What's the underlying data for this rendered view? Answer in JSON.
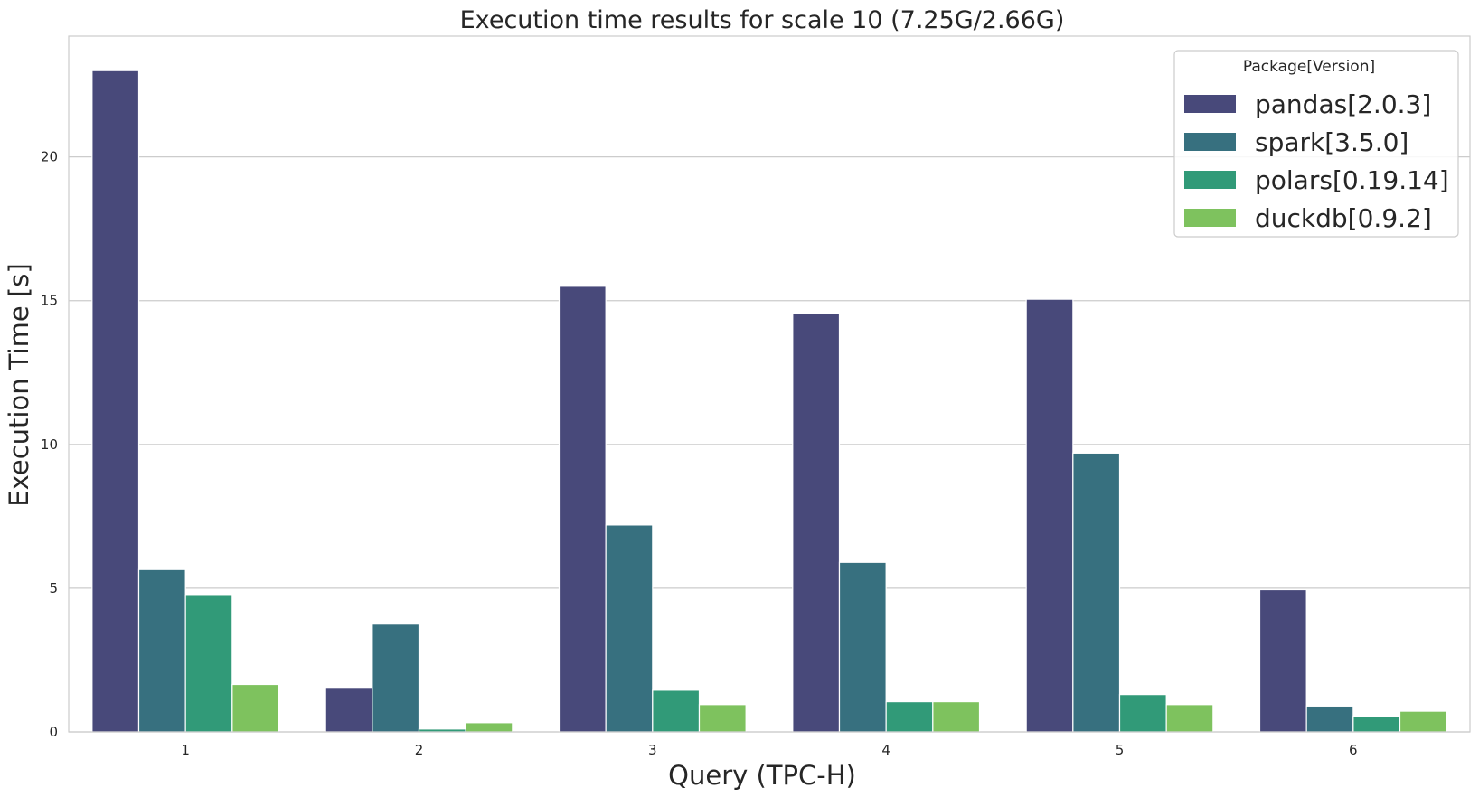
{
  "chart_data": {
    "type": "bar",
    "title": "Execution time results for scale 10 (7.25G/2.66G)",
    "xlabel": "Query (TPC-H)",
    "ylabel": "Execution Time [s]",
    "categories": [
      "1",
      "2",
      "3",
      "4",
      "5",
      "6"
    ],
    "ylim": [
      0,
      24.2
    ],
    "yticks": [
      0,
      5,
      10,
      15,
      20
    ],
    "grid": "horizontal",
    "legend_title": "Package[Version]",
    "legend_position": "top-right",
    "series": [
      {
        "name": "pandas[2.0.3]",
        "color": "#48497a",
        "values": [
          23.0,
          1.55,
          15.5,
          14.55,
          15.05,
          4.95
        ]
      },
      {
        "name": "spark[3.5.0]",
        "color": "#37707f",
        "values": [
          5.65,
          3.75,
          7.2,
          5.9,
          9.7,
          0.9
        ]
      },
      {
        "name": "polars[0.19.14]",
        "color": "#319a78",
        "values": [
          4.75,
          0.1,
          1.45,
          1.05,
          1.3,
          0.55
        ]
      },
      {
        "name": "duckdb[0.9.2]",
        "color": "#7ec25e",
        "values": [
          1.65,
          0.32,
          0.95,
          1.05,
          0.95,
          0.72
        ]
      }
    ]
  }
}
